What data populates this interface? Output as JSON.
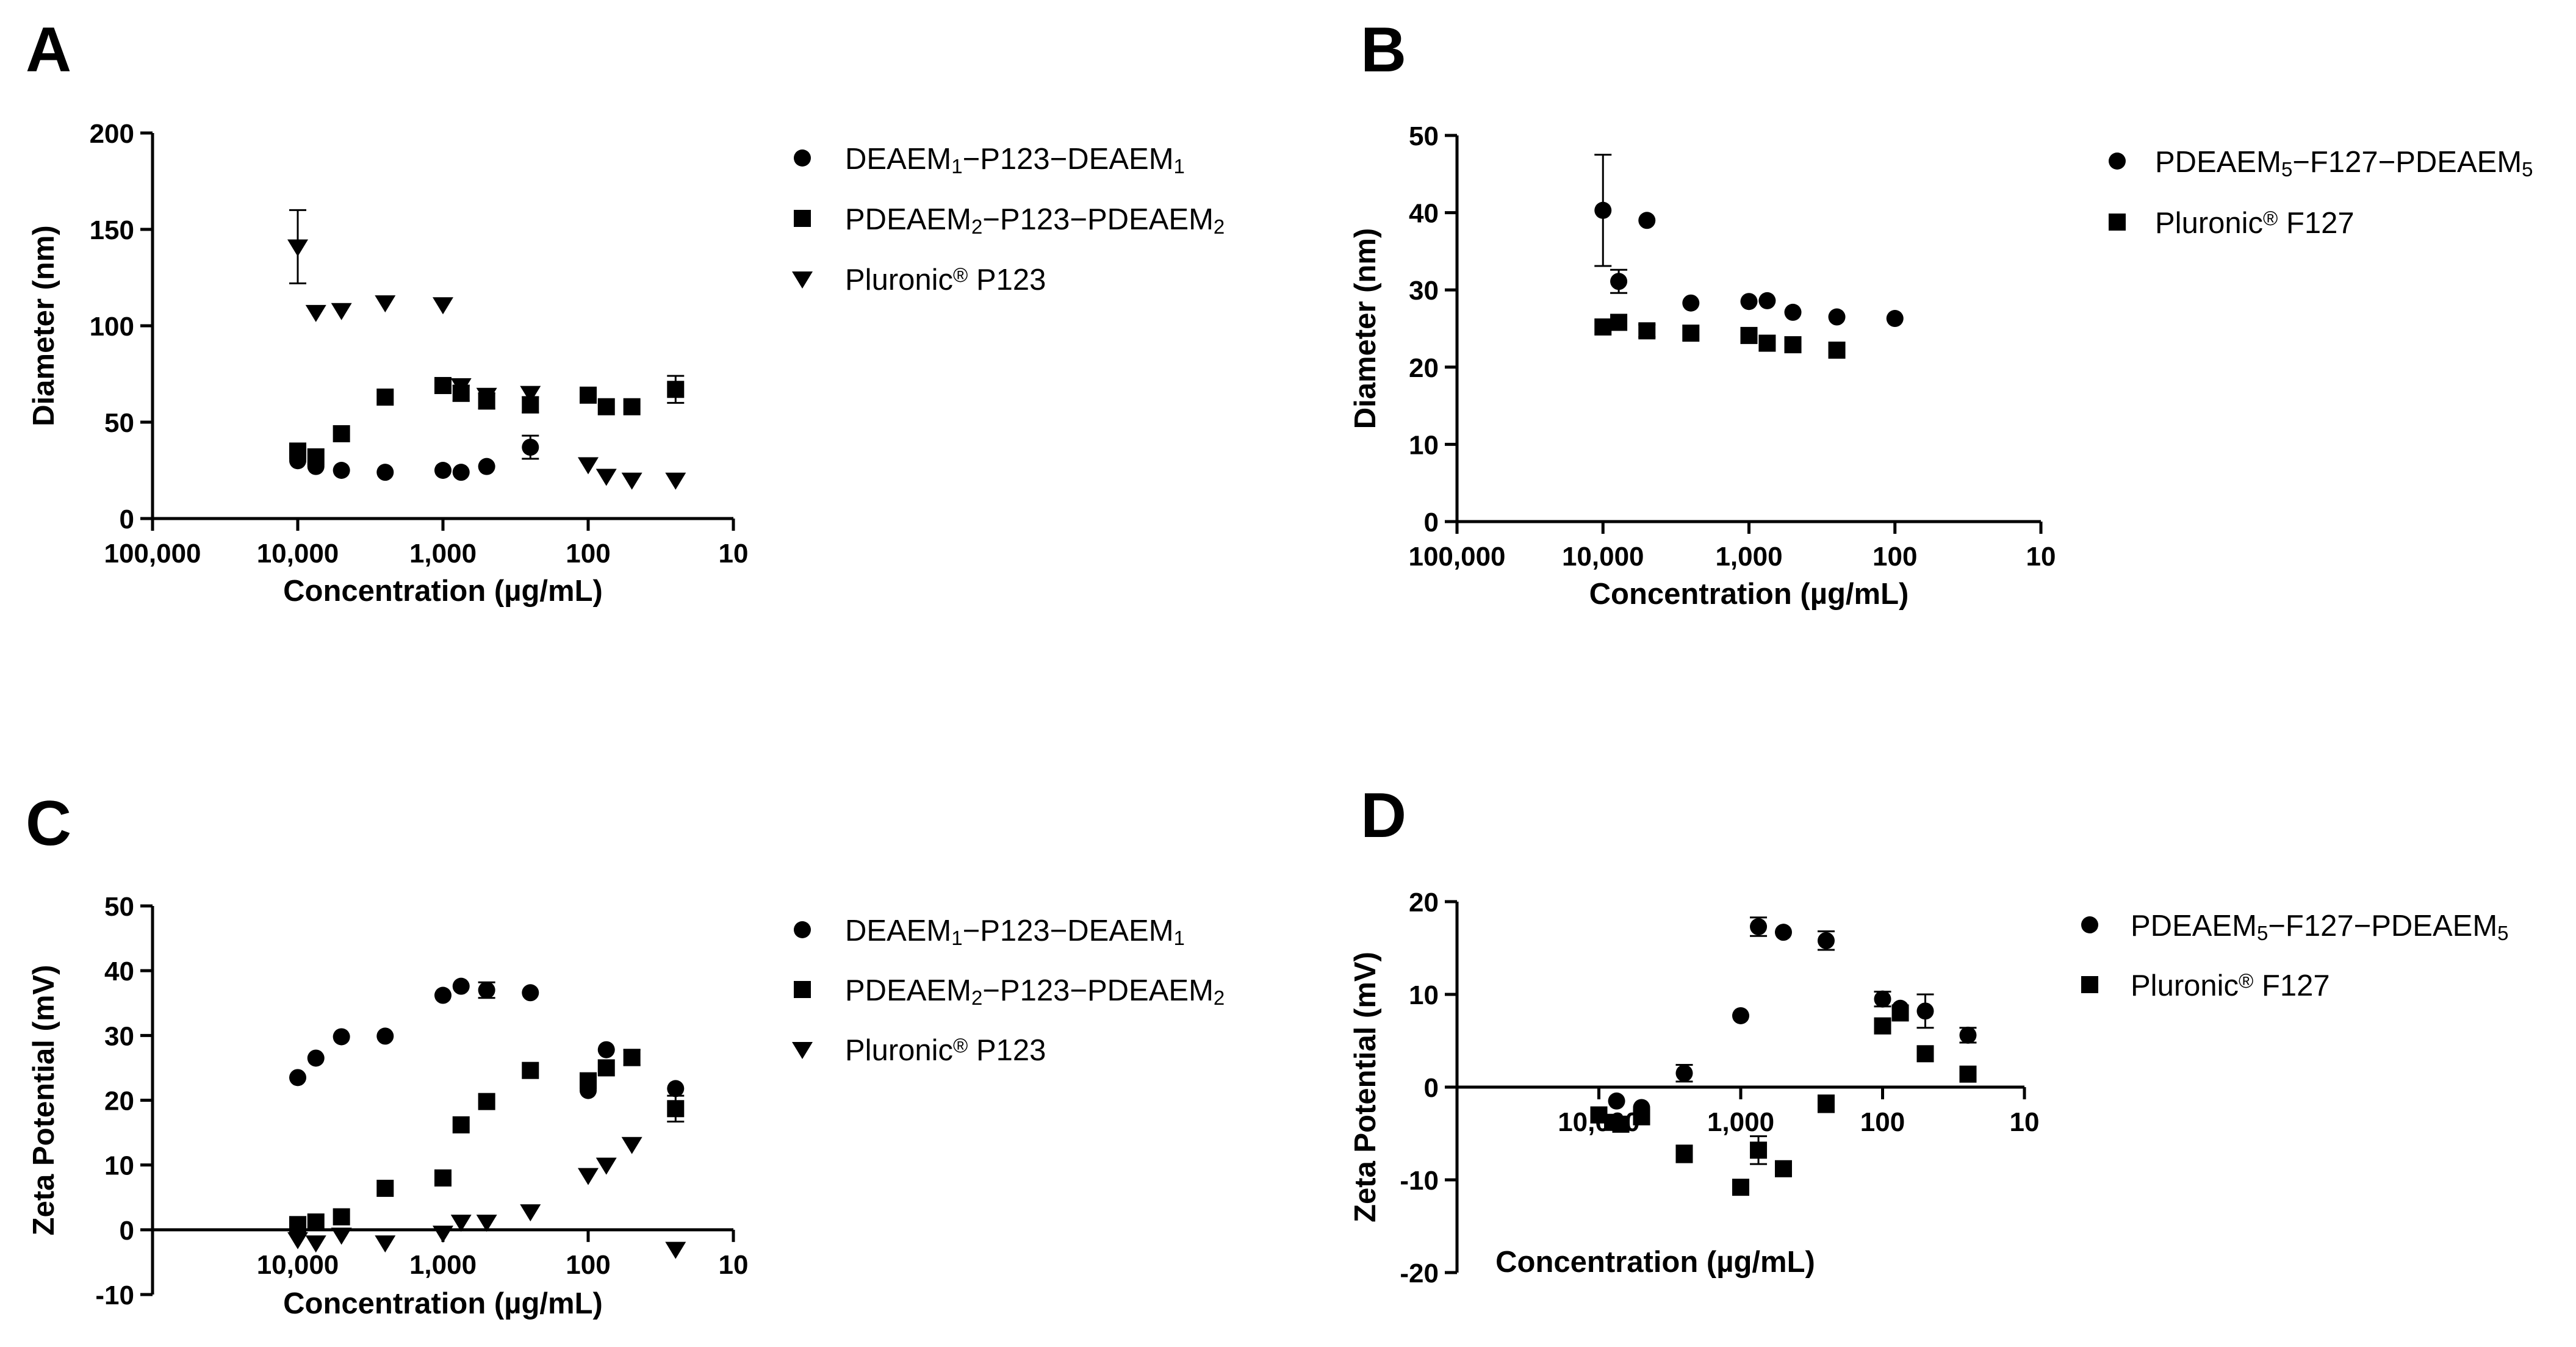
{
  "figure": {
    "description_visible": false
  },
  "chart_data": [
    {
      "panel": "A",
      "type": "scatter",
      "xscale": "log-reversed",
      "xlim": [
        100000,
        10
      ],
      "ylim": [
        0,
        200
      ],
      "xticks": [
        100000,
        10000,
        1000,
        100,
        10
      ],
      "xtick_labels": [
        "100,000",
        "10,000",
        "1,000",
        "100",
        "10"
      ],
      "yticks": [
        0,
        50,
        100,
        150,
        200
      ],
      "ytick_labels": [
        "0",
        "50",
        "100",
        "150",
        "200"
      ],
      "xlabel": "Concentration (µg/mL)",
      "ylabel": "Diameter (nm)",
      "legend": "right",
      "series": [
        {
          "name": "DEAEM1-P123-DEAEM1",
          "legend_parts": [
            [
              "DEAEM",
              ""
            ],
            [
              "1",
              "sub"
            ],
            [
              "−P123−DEAEM",
              ""
            ],
            [
              "1",
              "sub"
            ]
          ],
          "marker": "circle",
          "points": [
            {
              "x": 10000,
              "y": 30
            },
            {
              "x": 7500,
              "y": 27
            },
            {
              "x": 5000,
              "y": 25
            },
            {
              "x": 2500,
              "y": 24
            },
            {
              "x": 1000,
              "y": 25
            },
            {
              "x": 750,
              "y": 24
            },
            {
              "x": 500,
              "y": 27
            },
            {
              "x": 250,
              "y": 37,
              "err": 6
            }
          ]
        },
        {
          "name": "PDEAEM2-P123-PDEAEM2",
          "legend_parts": [
            [
              "PDEAEM",
              ""
            ],
            [
              "2",
              "sub"
            ],
            [
              "−P123−PDEAEM",
              ""
            ],
            [
              "2",
              "sub"
            ]
          ],
          "marker": "square",
          "points": [
            {
              "x": 10000,
              "y": 35
            },
            {
              "x": 7500,
              "y": 32
            },
            {
              "x": 5000,
              "y": 44
            },
            {
              "x": 2500,
              "y": 63
            },
            {
              "x": 1000,
              "y": 69
            },
            {
              "x": 750,
              "y": 65,
              "err": 4
            },
            {
              "x": 500,
              "y": 61,
              "err": 4
            },
            {
              "x": 250,
              "y": 59,
              "err": 4
            },
            {
              "x": 100,
              "y": 64
            },
            {
              "x": 75,
              "y": 58
            },
            {
              "x": 50,
              "y": 58
            },
            {
              "x": 25,
              "y": 67,
              "err": 7
            }
          ]
        },
        {
          "name": "Pluronic® P123",
          "legend_parts": [
            [
              "Pluronic",
              ""
            ],
            [
              "®",
              "sup"
            ],
            [
              " P123",
              ""
            ]
          ],
          "marker": "triangle-down",
          "points": [
            {
              "x": 10000,
              "y": 141,
              "err": 19
            },
            {
              "x": 7500,
              "y": 107
            },
            {
              "x": 5000,
              "y": 108
            },
            {
              "x": 2500,
              "y": 112
            },
            {
              "x": 1000,
              "y": 111
            },
            {
              "x": 750,
              "y": 69
            },
            {
              "x": 500,
              "y": 64
            },
            {
              "x": 250,
              "y": 65
            },
            {
              "x": 100,
              "y": 28
            },
            {
              "x": 75,
              "y": 22
            },
            {
              "x": 50,
              "y": 20
            },
            {
              "x": 25,
              "y": 20
            }
          ]
        }
      ]
    },
    {
      "panel": "B",
      "type": "scatter",
      "xscale": "log-reversed",
      "xlim": [
        100000,
        10
      ],
      "ylim": [
        0,
        50
      ],
      "xticks": [
        100000,
        10000,
        1000,
        100,
        10
      ],
      "xtick_labels": [
        "100,000",
        "10,000",
        "1,000",
        "100",
        "10"
      ],
      "yticks": [
        0,
        10,
        20,
        30,
        40,
        50
      ],
      "ytick_labels": [
        "0",
        "10",
        "20",
        "30",
        "40",
        "50"
      ],
      "xlabel": "Concentration (µg/mL)",
      "ylabel": "Diameter (nm)",
      "legend": "right",
      "series": [
        {
          "name": "PDEAEM5-F127-PDEAEM5",
          "legend_parts": [
            [
              "PDEAEM",
              ""
            ],
            [
              "5",
              "sub"
            ],
            [
              "−F127−PDEAEM",
              ""
            ],
            [
              "5",
              "sub"
            ]
          ],
          "marker": "circle",
          "points": [
            {
              "x": 10000,
              "y": 40.3,
              "err": 7.2
            },
            {
              "x": 7800,
              "y": 31.1,
              "err": 1.5
            },
            {
              "x": 5000,
              "y": 39
            },
            {
              "x": 2500,
              "y": 28.3
            },
            {
              "x": 1000,
              "y": 28.5
            },
            {
              "x": 750,
              "y": 28.6
            },
            {
              "x": 500,
              "y": 27.1
            },
            {
              "x": 250,
              "y": 26.5
            },
            {
              "x": 100,
              "y": 26.3
            }
          ]
        },
        {
          "name": "Pluronic® F127",
          "legend_parts": [
            [
              "Pluronic",
              ""
            ],
            [
              "®",
              "sup"
            ],
            [
              " F127",
              ""
            ]
          ],
          "marker": "square",
          "points": [
            {
              "x": 10000,
              "y": 25.2
            },
            {
              "x": 7800,
              "y": 25.8
            },
            {
              "x": 5000,
              "y": 24.7,
              "err": 0.8
            },
            {
              "x": 2500,
              "y": 24.4
            },
            {
              "x": 1000,
              "y": 24.1
            },
            {
              "x": 750,
              "y": 23.1
            },
            {
              "x": 500,
              "y": 22.9
            },
            {
              "x": 250,
              "y": 22.2
            }
          ]
        }
      ]
    },
    {
      "panel": "C",
      "type": "scatter",
      "xscale": "log-reversed",
      "xlim": [
        100000,
        10
      ],
      "ylim": [
        -10,
        50
      ],
      "x_axis_at": 0,
      "xticks": [
        10000,
        1000,
        100,
        10
      ],
      "xtick_labels": [
        "10,000",
        "1,000",
        "100",
        "10"
      ],
      "yticks": [
        -10,
        0,
        10,
        20,
        30,
        40,
        50
      ],
      "ytick_labels": [
        "-10",
        "0",
        "10",
        "20",
        "30",
        "40",
        "50"
      ],
      "xlabel": "Concentration (µg/mL)",
      "ylabel": "Zeta Potential (mV)",
      "legend": "right",
      "series": [
        {
          "name": "DEAEM1-P123-DEAEM1",
          "legend_parts": [
            [
              "DEAEM",
              ""
            ],
            [
              "1",
              "sub"
            ],
            [
              "−P123−DEAEM",
              ""
            ],
            [
              "1",
              "sub"
            ]
          ],
          "marker": "circle",
          "points": [
            {
              "x": 10000,
              "y": 23.5
            },
            {
              "x": 7500,
              "y": 26.5
            },
            {
              "x": 5000,
              "y": 29.8
            },
            {
              "x": 2500,
              "y": 29.9
            },
            {
              "x": 1000,
              "y": 36.2
            },
            {
              "x": 750,
              "y": 37.6
            },
            {
              "x": 500,
              "y": 37,
              "err": 1.2
            },
            {
              "x": 250,
              "y": 36.6
            },
            {
              "x": 100,
              "y": 21.5
            },
            {
              "x": 75,
              "y": 27.8
            },
            {
              "x": 25,
              "y": 21.8
            }
          ]
        },
        {
          "name": "PDEAEM2-P123-PDEAEM2",
          "legend_parts": [
            [
              "PDEAEM",
              ""
            ],
            [
              "2",
              "sub"
            ],
            [
              "−P123−PDEAEM",
              ""
            ],
            [
              "2",
              "sub"
            ]
          ],
          "marker": "square",
          "points": [
            {
              "x": 10000,
              "y": 0.8
            },
            {
              "x": 7500,
              "y": 1.2
            },
            {
              "x": 5000,
              "y": 2
            },
            {
              "x": 2500,
              "y": 6.4
            },
            {
              "x": 1000,
              "y": 8
            },
            {
              "x": 750,
              "y": 16.2
            },
            {
              "x": 500,
              "y": 19.8
            },
            {
              "x": 250,
              "y": 24.6
            },
            {
              "x": 100,
              "y": 23
            },
            {
              "x": 75,
              "y": 25
            },
            {
              "x": 50,
              "y": 26.6,
              "err": 1.2
            },
            {
              "x": 25,
              "y": 18.7,
              "err": 2
            }
          ]
        },
        {
          "name": "Pluronic® P123",
          "legend_parts": [
            [
              "Pluronic",
              ""
            ],
            [
              "®",
              "sup"
            ],
            [
              " P123",
              ""
            ]
          ],
          "marker": "triangle-down",
          "points": [
            {
              "x": 10000,
              "y": -1.5
            },
            {
              "x": 7500,
              "y": -2
            },
            {
              "x": 5000,
              "y": -0.8
            },
            {
              "x": 2500,
              "y": -2
            },
            {
              "x": 1000,
              "y": -0.5
            },
            {
              "x": 750,
              "y": 1.2
            },
            {
              "x": 500,
              "y": 1.2
            },
            {
              "x": 250,
              "y": 2.8
            },
            {
              "x": 100,
              "y": 8.4
            },
            {
              "x": 75,
              "y": 10
            },
            {
              "x": 50,
              "y": 13.2
            },
            {
              "x": 25,
              "y": -3
            }
          ]
        }
      ]
    },
    {
      "panel": "D",
      "type": "scatter",
      "xscale": "log-reversed",
      "xlim": [
        100000,
        10
      ],
      "ylim": [
        -20,
        20
      ],
      "x_axis_at": 0,
      "xticks": [
        10000,
        1000,
        100,
        10
      ],
      "xtick_labels": [
        "10,000",
        "1,000",
        "100",
        "10"
      ],
      "yticks": [
        -20,
        -10,
        0,
        10,
        20
      ],
      "ytick_labels": [
        "-20",
        "-10",
        "0",
        "10",
        "20"
      ],
      "xlabel": "Concentration (µg/mL)",
      "ylabel": "Zeta Potential (mV)",
      "legend": "right",
      "series": [
        {
          "name": "PDEAEM5-F127-PDEAEM5",
          "legend_parts": [
            [
              "PDEAEM",
              ""
            ],
            [
              "5",
              "sub"
            ],
            [
              "−F127−PDEAEM",
              ""
            ],
            [
              "5",
              "sub"
            ]
          ],
          "marker": "circle",
          "points": [
            {
              "x": 7500,
              "y": -1.5
            },
            {
              "x": 5000,
              "y": -2.2
            },
            {
              "x": 2500,
              "y": 1.5,
              "err": 0.9
            },
            {
              "x": 1000,
              "y": 7.7
            },
            {
              "x": 750,
              "y": 17.3,
              "err": 1
            },
            {
              "x": 500,
              "y": 16.7
            },
            {
              "x": 250,
              "y": 15.8,
              "err": 1
            },
            {
              "x": 100,
              "y": 9.5,
              "err": 0.8
            },
            {
              "x": 75,
              "y": 8.5
            },
            {
              "x": 50,
              "y": 8.2,
              "err": 1.8
            },
            {
              "x": 25,
              "y": 5.6,
              "err": 0.8
            }
          ]
        },
        {
          "name": "Pluronic® F127",
          "legend_parts": [
            [
              "Pluronic",
              ""
            ],
            [
              "®",
              "sup"
            ],
            [
              " F127",
              ""
            ]
          ],
          "marker": "square",
          "points": [
            {
              "x": 10000,
              "y": -3
            },
            {
              "x": 8000,
              "y": -3.8
            },
            {
              "x": 7000,
              "y": -4
            },
            {
              "x": 5000,
              "y": -3.2
            },
            {
              "x": 2500,
              "y": -7.2,
              "err": 0.9
            },
            {
              "x": 1000,
              "y": -10.8
            },
            {
              "x": 750,
              "y": -6.8,
              "err": 1.5
            },
            {
              "x": 500,
              "y": -8.8
            },
            {
              "x": 250,
              "y": -1.8,
              "err": 0.9
            },
            {
              "x": 100,
              "y": 6.6
            },
            {
              "x": 75,
              "y": 8
            },
            {
              "x": 50,
              "y": 3.6
            },
            {
              "x": 25,
              "y": 1.4
            }
          ]
        }
      ]
    }
  ]
}
